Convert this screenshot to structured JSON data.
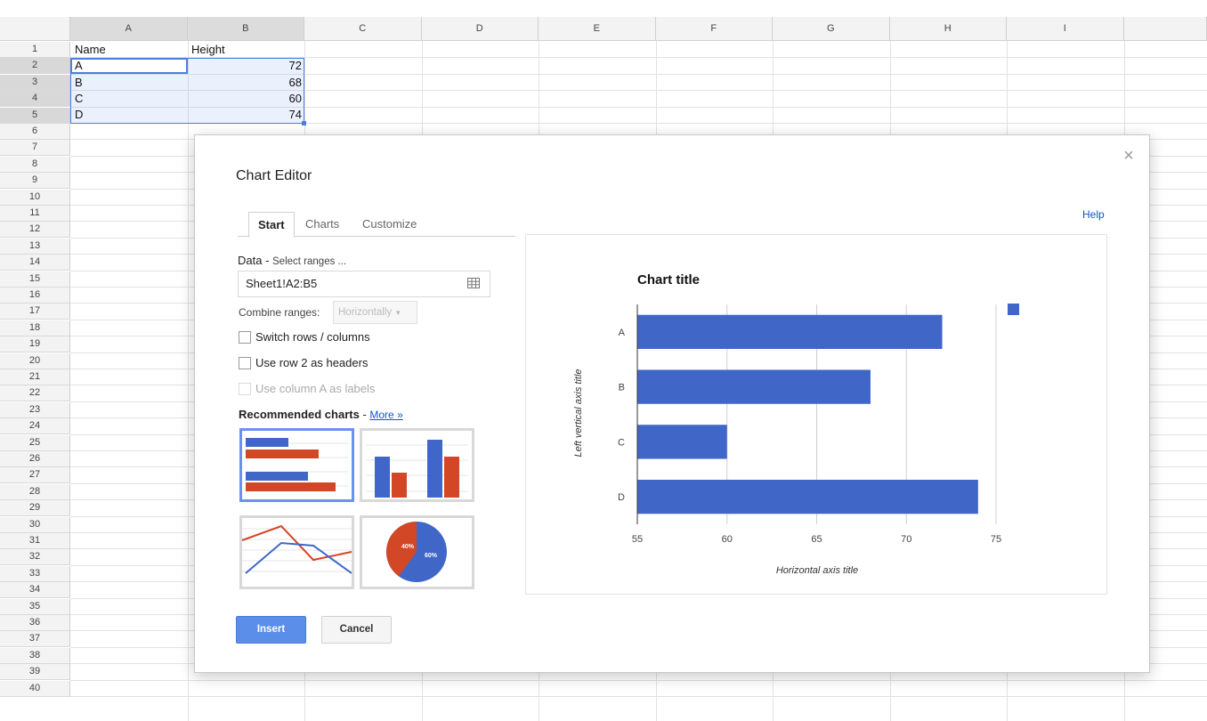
{
  "sheet": {
    "columns": [
      "A",
      "B",
      "C",
      "D",
      "E",
      "F",
      "G",
      "H",
      "I"
    ],
    "rows": [
      "1",
      "2",
      "3",
      "4",
      "5",
      "6",
      "7",
      "8",
      "9",
      "10",
      "11",
      "12",
      "13",
      "14",
      "15",
      "16",
      "17",
      "18",
      "19",
      "20",
      "21",
      "22",
      "23",
      "24",
      "25",
      "26",
      "27",
      "28",
      "29",
      "30",
      "31",
      "32",
      "33",
      "34",
      "35",
      "36",
      "37",
      "38",
      "39",
      "40"
    ],
    "cells": {
      "a1": "Name",
      "b1": "Height",
      "a2": "A",
      "b2": "72",
      "a3": "B",
      "b3": "68",
      "a4": "C",
      "b4": "60",
      "a5": "D",
      "b5": "74"
    }
  },
  "dialog": {
    "title": "Chart Editor",
    "close_icon": "close-icon",
    "help": "Help",
    "tabs": [
      {
        "label": "Start"
      },
      {
        "label": "Charts"
      },
      {
        "label": "Customize"
      }
    ],
    "data_label": "Data - ",
    "data_hint": "Select ranges ...",
    "range_value": "Sheet1!A2:B5",
    "combine_label": "Combine ranges:",
    "combine_value": "Horizontally",
    "options": [
      {
        "label": "Switch rows / columns",
        "checked": false,
        "enabled": true
      },
      {
        "label": "Use row 2 as headers",
        "checked": false,
        "enabled": true
      },
      {
        "label": "Use column A as labels",
        "checked": false,
        "enabled": false
      }
    ],
    "recommended_label": "Recommended charts",
    "recommended_sep": " - ",
    "more_link": "More »",
    "pie_thumb_labels": [
      "40%",
      "60%"
    ],
    "insert": "Insert",
    "cancel": "Cancel"
  },
  "colors": {
    "series_blue": "#4066c8",
    "accent_red": "#d24726",
    "selection": "#4b7ee0"
  },
  "chart_data": {
    "type": "bar",
    "orientation": "horizontal",
    "title": "Chart title",
    "xlabel": "Horizontal axis title",
    "ylabel": "Left vertical axis title",
    "categories": [
      "A",
      "B",
      "C",
      "D"
    ],
    "values": [
      72,
      68,
      60,
      74
    ],
    "xlim": [
      55,
      75
    ],
    "xticks": [
      "55",
      "60",
      "65",
      "70",
      "75"
    ],
    "grid": true,
    "legend": "right"
  }
}
